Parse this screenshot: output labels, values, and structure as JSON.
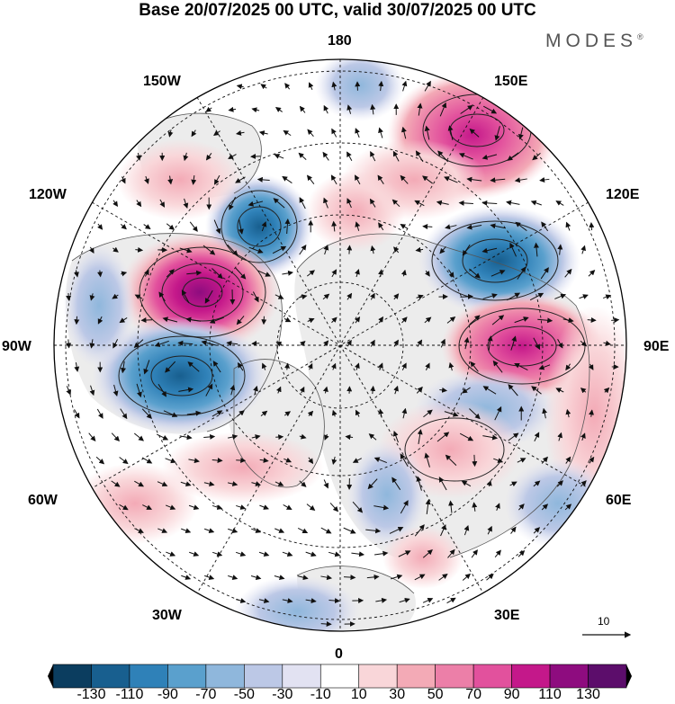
{
  "title": "Base 20/07/2025 00 UTC, valid 30/07/2025 00 UTC",
  "brand": "MODES",
  "brand_mark": "®",
  "longitude_labels": {
    "lon_180": "180",
    "lon_150w": "150W",
    "lon_150e": "150E",
    "lon_120w": "120W",
    "lon_120e": "120E",
    "lon_90w": "90W",
    "lon_90e": "90E",
    "lon_60w": "60W",
    "lon_60e": "60E",
    "lon_30w": "30W",
    "lon_30e": "30E",
    "lon_0": "0"
  },
  "vector_scale": {
    "value": "10"
  },
  "colorbar": {
    "ticks": [
      "-130",
      "-110",
      "-90",
      "-70",
      "-50",
      "-30",
      "-10",
      "10",
      "30",
      "50",
      "70",
      "90",
      "110",
      "130"
    ],
    "colors": [
      "#0b3d5f",
      "#185f8f",
      "#2f81b8",
      "#5aa0cd",
      "#8fb7dc",
      "#bcc8e6",
      "#e2e2f2",
      "#ffffff",
      "#f9d6d9",
      "#f3aab6",
      "#ec7fa8",
      "#e2519d",
      "#c4188a",
      "#8e0c7f",
      "#5c0d6b"
    ]
  },
  "anomaly_centers": [
    {
      "sign": "negative",
      "value": -90,
      "region": "Alaska/Bering"
    },
    {
      "sign": "positive",
      "value": 110,
      "region": "Northwest Canada"
    },
    {
      "sign": "negative",
      "value": -90,
      "region": "Eastern Canada"
    },
    {
      "sign": "negative",
      "value": -70,
      "region": "Eastern Siberia"
    },
    {
      "sign": "positive",
      "value": 90,
      "region": "Central Siberia"
    },
    {
      "sign": "positive",
      "value": 90,
      "region": "North Pacific 150E"
    }
  ]
}
